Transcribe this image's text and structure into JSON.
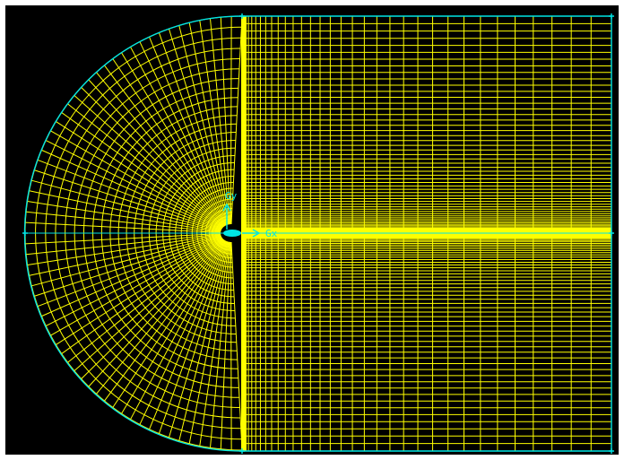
{
  "viewport": {
    "background": "#000000",
    "frame_color": "#ffffff",
    "mesh_color": "#ffff00",
    "boundary_color": "#00e5e5",
    "axis_color": "#00e5e5"
  },
  "triad": {
    "y_label": "Gy",
    "x_label": "Gx"
  },
  "mesh": {
    "type": "C-grid structured mesh",
    "radial_lines": 64,
    "circumferential_lines": 30,
    "wake_vertical_lines": 34,
    "wake_horizontal_lines": 60
  },
  "icons": {
    "origin_marker": "airfoil-body-icon",
    "corner_vertex": "vertex-plus-icon"
  }
}
